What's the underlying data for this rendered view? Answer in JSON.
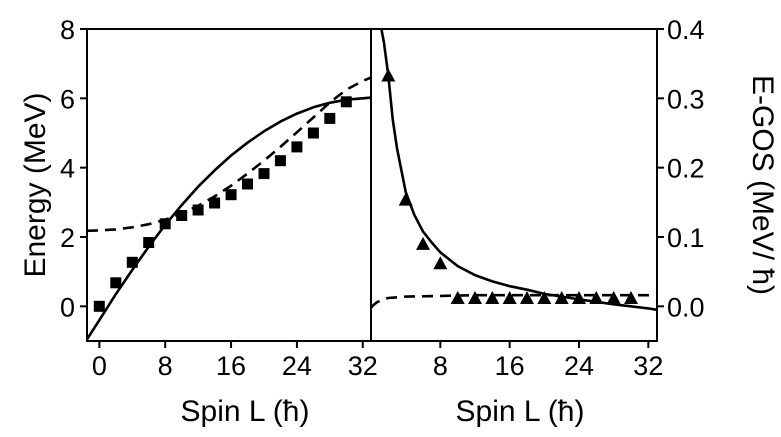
{
  "chart_data": [
    {
      "type": "line",
      "panel": "left",
      "xlabel": "Spin L (ħ)",
      "ylabel": "Energy (MeV)",
      "xlim": [
        -1.5,
        33
      ],
      "ylim": [
        -1,
        8
      ],
      "xticks": [
        "0",
        "8",
        "16",
        "24",
        "32"
      ],
      "yticks": [
        "0",
        "2",
        "4",
        "6",
        "8"
      ],
      "grid": false,
      "series": [
        {
          "marker": "square",
          "x": [
            0,
            2,
            4,
            6,
            8,
            10,
            12,
            14,
            16,
            18,
            20,
            22,
            24,
            26,
            28,
            30
          ],
          "y": [
            0.0,
            0.68,
            1.27,
            1.84,
            2.38,
            2.62,
            2.78,
            2.98,
            3.22,
            3.53,
            3.83,
            4.2,
            4.6,
            5.0,
            5.42,
            5.9
          ]
        },
        {
          "line": "solid",
          "x": [
            -1.5,
            0,
            2,
            4,
            6,
            8,
            10,
            12,
            14,
            16,
            18,
            20,
            22,
            24,
            26,
            28,
            30,
            32,
            33
          ],
          "y": [
            -0.95,
            -0.4,
            0.35,
            1.05,
            1.72,
            2.35,
            2.92,
            3.45,
            3.92,
            4.35,
            4.72,
            5.05,
            5.33,
            5.56,
            5.74,
            5.87,
            5.96,
            6.0,
            6.02
          ]
        },
        {
          "line": "dashed",
          "x": [
            -1.5,
            0,
            2,
            4,
            6,
            8,
            10,
            12,
            14,
            16,
            18,
            20,
            22,
            24,
            26,
            28,
            30,
            32,
            33
          ],
          "y": [
            2.18,
            2.19,
            2.22,
            2.28,
            2.37,
            2.5,
            2.68,
            2.9,
            3.17,
            3.48,
            3.83,
            4.2,
            4.6,
            5.02,
            5.45,
            5.88,
            6.25,
            6.5,
            6.6
          ]
        }
      ]
    },
    {
      "type": "line",
      "panel": "right",
      "xlabel": "Spin L (ħ)",
      "ylabel": "E-GOS (MeV/ ħ)",
      "xlim": [
        0,
        33
      ],
      "ylim": [
        -0.05,
        0.4
      ],
      "xticks": [
        "8",
        "16",
        "24",
        "32"
      ],
      "yticks": [
        "0.0",
        "0.1",
        "0.2",
        "0.3",
        "0.4"
      ],
      "y_axis_side": "right",
      "grid": false,
      "series": [
        {
          "marker": "triangle",
          "x": [
            2,
            4,
            6,
            8,
            10,
            12,
            14,
            16,
            18,
            20,
            22,
            24,
            26,
            28,
            30
          ],
          "y": [
            0.333,
            0.154,
            0.09,
            0.062,
            0.012,
            0.012,
            0.012,
            0.012,
            0.012,
            0.012,
            0.012,
            0.012,
            0.012,
            0.012,
            0.012
          ]
        },
        {
          "line": "solid",
          "x": [
            1.2,
            1.5,
            2,
            2.5,
            3,
            4,
            5,
            6,
            7,
            8,
            10,
            12,
            14,
            16,
            18,
            20,
            24,
            28,
            32,
            33
          ],
          "y": [
            0.4,
            0.38,
            0.333,
            0.27,
            0.228,
            0.165,
            0.132,
            0.108,
            0.092,
            0.078,
            0.058,
            0.045,
            0.036,
            0.029,
            0.024,
            0.018,
            0.01,
            0.003,
            -0.003,
            -0.005
          ]
        },
        {
          "line": "dashed",
          "x": [
            0,
            0.3,
            0.7,
            1.2,
            2,
            4,
            8,
            12,
            16,
            20,
            24,
            28,
            32,
            33
          ],
          "y": [
            -0.002,
            0.002,
            0.006,
            0.009,
            0.012,
            0.014,
            0.015,
            0.016,
            0.016,
            0.016,
            0.016,
            0.016,
            0.016,
            0.016
          ]
        }
      ]
    }
  ]
}
